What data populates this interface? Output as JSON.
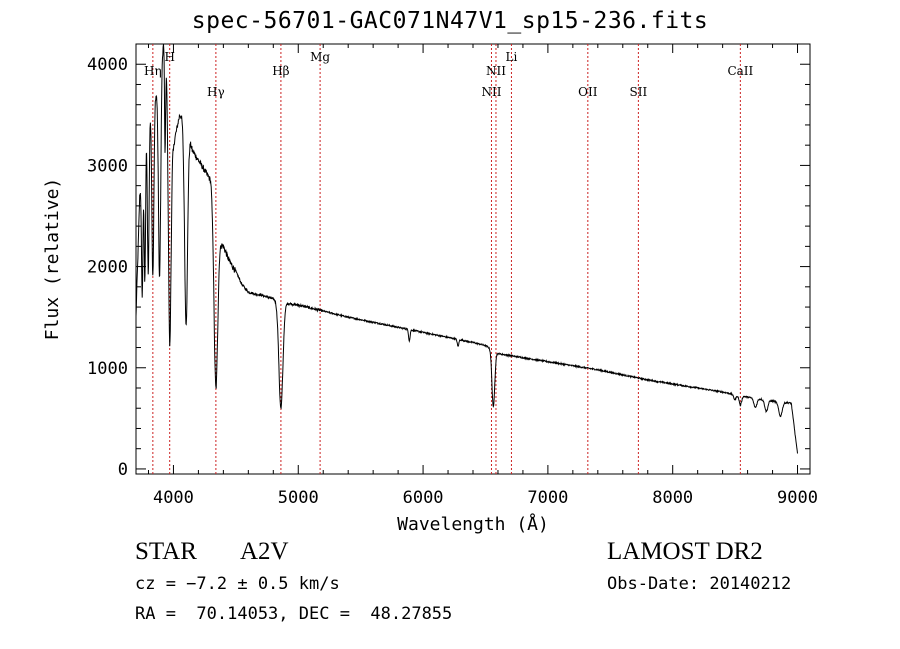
{
  "title": "spec-56701-GAC071N47V1_sp15-236.fits",
  "info": {
    "class": "STAR",
    "subclass": "A2V",
    "survey": "LAMOST DR2",
    "cz": "cz = −7.2 ± 0.5 km/s",
    "obs_date": "Obs-Date: 20140212",
    "coords": "RA =  70.14053, DEC =  48.27855"
  },
  "chart_data": {
    "type": "line",
    "title": "spec-56701-GAC071N47V1_sp15-236.fits",
    "xlabel": "Wavelength (Å)",
    "ylabel": "Flux (relative)",
    "xlim": [
      3700,
      9100
    ],
    "ylim": [
      -50,
      4200
    ],
    "xticks": [
      4000,
      5000,
      6000,
      7000,
      8000,
      9000
    ],
    "yticks": [
      0,
      1000,
      2000,
      3000,
      4000
    ],
    "line_color": "#000000",
    "marker_color": "#cc2222",
    "spectral_lines": [
      {
        "label": "Hη",
        "wavelength": 3835,
        "row": 1
      },
      {
        "label": "H",
        "wavelength": 3970,
        "row": 0
      },
      {
        "label": "Hγ",
        "wavelength": 4340,
        "row": 2
      },
      {
        "label": "Hβ",
        "wavelength": 4861,
        "row": 1
      },
      {
        "label": "Mg",
        "wavelength": 5175,
        "row": 0
      },
      {
        "label": "NII",
        "wavelength": 6548,
        "row": 2
      },
      {
        "label": "NII",
        "wavelength": 6584,
        "row": 1
      },
      {
        "label": "Li",
        "wavelength": 6708,
        "row": 0
      },
      {
        "label": "OII",
        "wavelength": 7320,
        "row": 2
      },
      {
        "label": "SII",
        "wavelength": 7725,
        "row": 2
      },
      {
        "label": "CaII",
        "wavelength": 8542,
        "row": 1
      }
    ],
    "continuum": [
      [
        3700,
        1500
      ],
      [
        3730,
        2700
      ],
      [
        3780,
        3500
      ],
      [
        3830,
        3600
      ],
      [
        3880,
        3800
      ],
      [
        3920,
        4200
      ],
      [
        3960,
        3900
      ],
      [
        4000,
        3200
      ],
      [
        4050,
        3500
      ],
      [
        4100,
        3450
      ],
      [
        4150,
        3150
      ],
      [
        4200,
        3050
      ],
      [
        4250,
        2950
      ],
      [
        4300,
        2850
      ],
      [
        4330,
        2400
      ],
      [
        4360,
        2250
      ],
      [
        4400,
        2200
      ],
      [
        4450,
        2050
      ],
      [
        4500,
        1950
      ],
      [
        4550,
        1820
      ],
      [
        4600,
        1750
      ],
      [
        4650,
        1730
      ],
      [
        4700,
        1720
      ],
      [
        4750,
        1700
      ],
      [
        4800,
        1680
      ],
      [
        4850,
        1650
      ],
      [
        4900,
        1640
      ],
      [
        5000,
        1620
      ],
      [
        5200,
        1560
      ],
      [
        5400,
        1500
      ],
      [
        5600,
        1450
      ],
      [
        5800,
        1400
      ],
      [
        6000,
        1350
      ],
      [
        6200,
        1300
      ],
      [
        6400,
        1250
      ],
      [
        6500,
        1220
      ],
      [
        6600,
        1140
      ],
      [
        6800,
        1100
      ],
      [
        7000,
        1060
      ],
      [
        7200,
        1020
      ],
      [
        7400,
        980
      ],
      [
        7600,
        930
      ],
      [
        7800,
        880
      ],
      [
        8000,
        840
      ],
      [
        8200,
        800
      ],
      [
        8400,
        760
      ],
      [
        8600,
        710
      ],
      [
        8800,
        670
      ],
      [
        8950,
        650
      ],
      [
        9000,
        150
      ]
    ],
    "absorption_features": [
      {
        "center": 3750,
        "depth": 1300,
        "width": 6
      },
      {
        "center": 3771,
        "depth": 1500,
        "width": 6
      },
      {
        "center": 3798,
        "depth": 1600,
        "width": 7
      },
      {
        "center": 3835,
        "depth": 1700,
        "width": 8
      },
      {
        "center": 3889,
        "depth": 2000,
        "width": 9
      },
      {
        "center": 3933,
        "depth": 1000,
        "width": 4
      },
      {
        "center": 3970,
        "depth": 2500,
        "width": 11
      },
      {
        "center": 4101,
        "depth": 2000,
        "width": 12
      },
      {
        "center": 4340,
        "depth": 1550,
        "width": 14
      },
      {
        "center": 4861,
        "depth": 1050,
        "width": 16
      },
      {
        "center": 5890,
        "depth": 110,
        "width": 6
      },
      {
        "center": 6280,
        "depth": 70,
        "width": 6
      },
      {
        "center": 6563,
        "depth": 560,
        "width": 11
      },
      {
        "center": 8498,
        "depth": 50,
        "width": 10
      },
      {
        "center": 8542,
        "depth": 90,
        "width": 10
      },
      {
        "center": 8662,
        "depth": 90,
        "width": 12
      },
      {
        "center": 8750,
        "depth": 110,
        "width": 12
      },
      {
        "center": 8863,
        "depth": 140,
        "width": 14
      }
    ]
  }
}
